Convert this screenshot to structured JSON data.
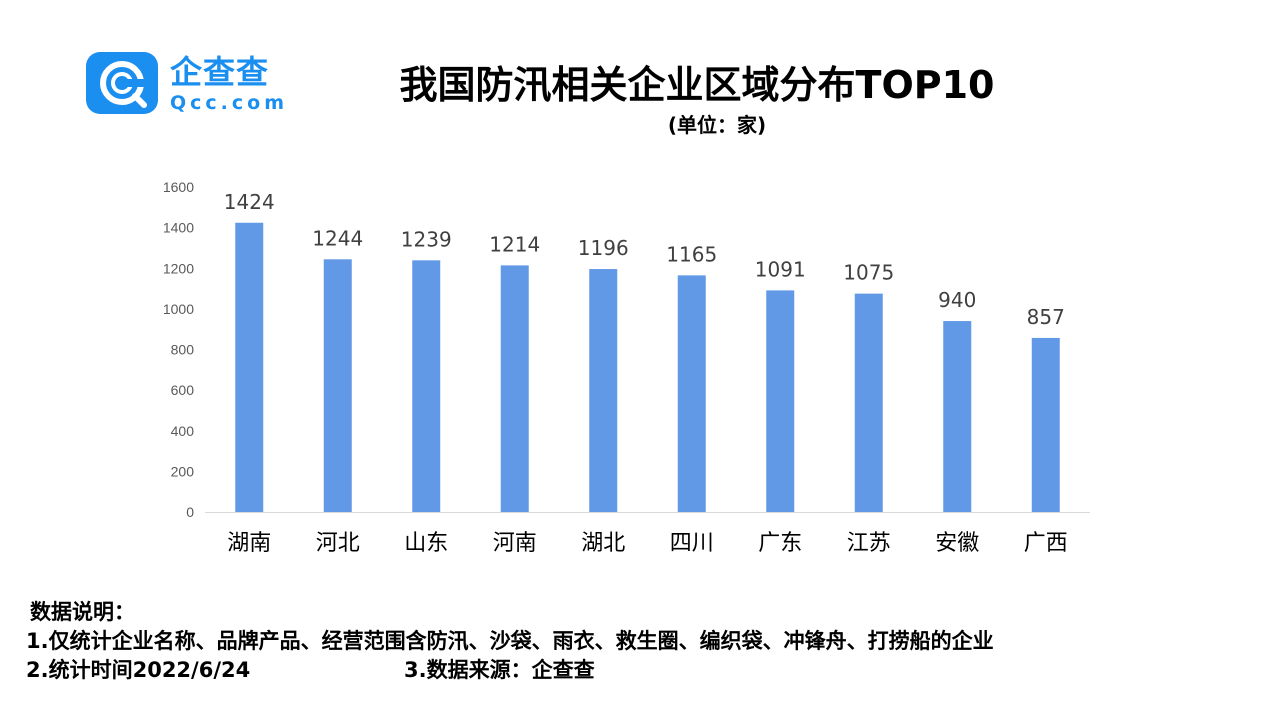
{
  "logo": {
    "name_cn": "企查查",
    "name_en": "Qcc.com",
    "brand_color": "#1b8ff0"
  },
  "title": "我国防汛相关企业区域分布TOP10",
  "subtitle": "(单位：家)",
  "chart_data": {
    "type": "bar",
    "title": "我国防汛相关企业区域分布TOP10",
    "unit": "(单位：家)",
    "categories": [
      "湖南",
      "河北",
      "山东",
      "河南",
      "湖北",
      "四川",
      "广东",
      "江苏",
      "安徽",
      "广西"
    ],
    "values": [
      1424,
      1244,
      1239,
      1214,
      1196,
      1165,
      1091,
      1075,
      940,
      857
    ],
    "ylim": [
      0,
      1600
    ],
    "yticks": [
      0,
      200,
      400,
      600,
      800,
      1000,
      1200,
      1400,
      1600
    ],
    "grid": false,
    "data_labels": true,
    "bar_color": "#6199e6"
  },
  "notes": {
    "heading": "数据说明：",
    "line1": "1.仅统计企业名称、品牌产品、经营范围含防汛、沙袋、雨衣、救生圈、编织袋、冲锋舟、打捞船的企业",
    "line2": "2.统计时间2022/6/24",
    "line3": "3.数据来源：企查查"
  }
}
